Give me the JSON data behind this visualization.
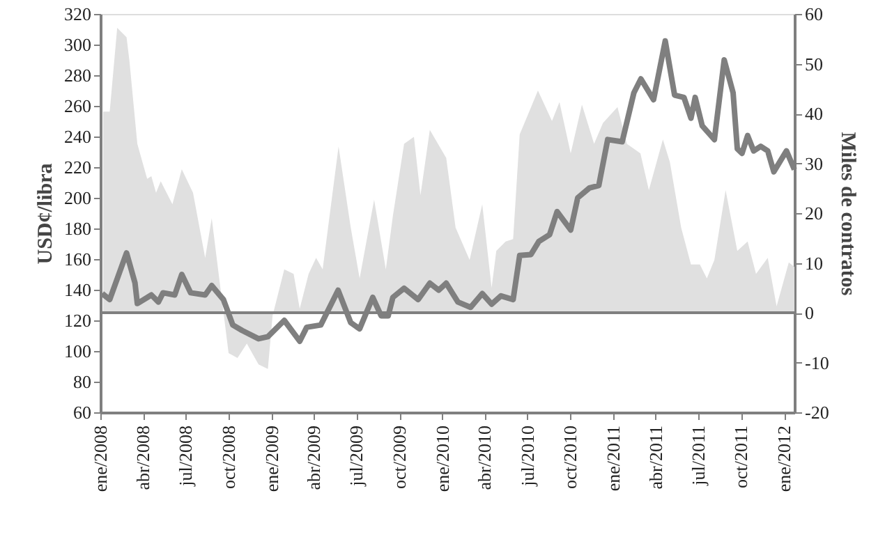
{
  "chart_data": {
    "type": "line",
    "ylabel": "USD¢/libra",
    "y2label": "Miles de contratos",
    "xlim": [
      "2008-01-01",
      "2012-01-23"
    ],
    "xticks": [
      {
        "value": "2008-01-01",
        "label": "ene/2008"
      },
      {
        "value": "2008-04-01",
        "label": "abr/2008"
      },
      {
        "value": "2008-07-01",
        "label": "jul/2008"
      },
      {
        "value": "2008-10-01",
        "label": "oct/2008"
      },
      {
        "value": "2009-01-01",
        "label": "ene/2009"
      },
      {
        "value": "2009-04-01",
        "label": "abr/2009"
      },
      {
        "value": "2009-07-01",
        "label": "jul/2009"
      },
      {
        "value": "2009-10-01",
        "label": "oct/2009"
      },
      {
        "value": "2010-01-01",
        "label": "ene/2010"
      },
      {
        "value": "2010-04-01",
        "label": "abr/2010"
      },
      {
        "value": "2010-07-01",
        "label": "jul/2010"
      },
      {
        "value": "2010-10-01",
        "label": "oct/2010"
      },
      {
        "value": "2011-01-01",
        "label": "ene/2011"
      },
      {
        "value": "2011-04-01",
        "label": "abr/2011"
      },
      {
        "value": "2011-07-01",
        "label": "jul/2011"
      },
      {
        "value": "2011-10-01",
        "label": "oct/2011"
      },
      {
        "value": "2012-01-01",
        "label": "ene/2012"
      }
    ],
    "ylim": [
      60,
      320
    ],
    "yticks": [
      60,
      80,
      100,
      120,
      140,
      160,
      180,
      200,
      220,
      240,
      260,
      280,
      300,
      320
    ],
    "y2lim": [
      -20,
      60
    ],
    "y2ticks": [
      -20,
      -10,
      0,
      10,
      20,
      30,
      40,
      50,
      60
    ],
    "grid": false,
    "marker": "none",
    "ref_lines": [
      {
        "axis": "y2",
        "value": 0,
        "color": "#7f7f7f"
      }
    ],
    "series": [
      {
        "type": "area",
        "axis": "y2",
        "color": "#e0e0e0",
        "x": [
          "2008-01-07",
          "2008-01-21",
          "2008-02-06",
          "2008-02-26",
          "2008-03-03",
          "2008-03-20",
          "2008-04-10",
          "2008-04-19",
          "2008-04-29",
          "2008-05-09",
          "2008-06-03",
          "2008-06-23",
          "2008-07-17",
          "2008-08-12",
          "2008-08-26",
          "2008-09-11",
          "2008-10-01",
          "2008-10-20",
          "2008-11-09",
          "2008-12-04",
          "2008-12-24",
          "2009-01-03",
          "2009-01-28",
          "2009-02-17",
          "2009-03-02",
          "2009-03-21",
          "2009-04-06",
          "2009-04-20",
          "2009-05-24",
          "2009-06-19",
          "2009-07-08",
          "2009-08-08",
          "2009-09-02",
          "2009-09-17",
          "2009-10-11",
          "2009-11-01",
          "2009-11-15",
          "2009-12-05",
          "2010-01-09",
          "2010-01-29",
          "2010-02-28",
          "2010-03-27",
          "2010-04-16",
          "2010-04-26",
          "2010-05-16",
          "2010-06-01",
          "2010-06-15",
          "2010-07-24",
          "2010-08-23",
          "2010-09-08",
          "2010-10-02",
          "2010-10-26",
          "2010-11-21",
          "2010-12-10",
          "2011-01-10",
          "2011-01-30",
          "2011-02-28",
          "2011-03-18",
          "2011-04-17",
          "2011-05-02",
          "2011-05-26",
          "2011-06-16",
          "2011-07-05",
          "2011-07-20",
          "2011-08-05",
          "2011-08-29",
          "2011-09-23",
          "2011-10-15",
          "2011-11-02",
          "2011-11-27",
          "2011-12-16",
          "2012-01-11",
          "2012-01-23"
        ],
        "values": [
          40.4,
          40.4,
          57.2,
          55.3,
          50.7,
          33.9,
          26.9,
          27.4,
          24.1,
          26.4,
          21.8,
          28.8,
          24.1,
          11,
          19,
          6.9,
          -8.1,
          -9.1,
          -6.2,
          -10.4,
          -11.3,
          -0.6,
          8.7,
          7.8,
          0.8,
          7.8,
          11,
          8.7,
          33.4,
          17.1,
          6.9,
          22.7,
          8.7,
          19.4,
          33.9,
          35.3,
          23.6,
          36.7,
          31.1,
          17.1,
          10.6,
          21.8,
          5,
          12.4,
          14.3,
          14.8,
          35.8,
          44.6,
          38.5,
          42.3,
          32,
          41.8,
          33.9,
          38.1,
          41.3,
          33.9,
          32,
          24.6,
          34.8,
          30.2,
          17.1,
          9.7,
          9.7,
          6.9,
          10.6,
          24.6,
          12.4,
          14.3,
          7.8,
          11,
          1.3,
          10.1,
          9.2
        ]
      },
      {
        "type": "line",
        "color": "#7f7f7f",
        "x": [
          "2008-01-05",
          "2008-01-21",
          "2008-02-26",
          "2008-03-15",
          "2008-03-20",
          "2008-04-19",
          "2008-05-04",
          "2008-05-14",
          "2008-06-08",
          "2008-06-23",
          "2008-07-12",
          "2008-08-12",
          "2008-08-26",
          "2008-09-20",
          "2008-10-10",
          "2008-10-30",
          "2008-12-04",
          "2008-12-24",
          "2009-01-28",
          "2009-03-02",
          "2009-03-17",
          "2009-04-16",
          "2009-05-23",
          "2009-06-19",
          "2009-07-08",
          "2009-08-05",
          "2009-08-23",
          "2009-09-07",
          "2009-09-17",
          "2009-10-11",
          "2009-11-10",
          "2009-12-05",
          "2009-12-24",
          "2010-01-09",
          "2010-02-03",
          "2010-03-02",
          "2010-03-27",
          "2010-04-16",
          "2010-05-06",
          "2010-06-01",
          "2010-06-15",
          "2010-07-09",
          "2010-07-26",
          "2010-08-18",
          "2010-09-03",
          "2010-10-02",
          "2010-10-17",
          "2010-11-11",
          "2010-12-01",
          "2010-12-20",
          "2011-01-20",
          "2011-02-14",
          "2011-03-01",
          "2011-03-28",
          "2011-04-22",
          "2011-05-12",
          "2011-06-01",
          "2011-06-16",
          "2011-06-25",
          "2011-07-10",
          "2011-08-05",
          "2011-08-26",
          "2011-09-14",
          "2011-09-23",
          "2011-10-03",
          "2011-10-15",
          "2011-10-28",
          "2011-11-12",
          "2011-11-27",
          "2011-12-10",
          "2012-01-06",
          "2012-01-23"
        ],
        "values": [
          137.5,
          133.6,
          164,
          144.5,
          131,
          136.6,
          132,
          138,
          136.6,
          150,
          138,
          136.6,
          142.7,
          133.6,
          117,
          113.4,
          108,
          109.4,
          120,
          106.4,
          115.5,
          117,
          139.7,
          118.5,
          114.5,
          135,
          123,
          123,
          135,
          141,
          133.6,
          144.3,
          139.7,
          144.3,
          132,
          128.5,
          137.5,
          130.6,
          136,
          133.6,
          162.4,
          163,
          171.5,
          176,
          191,
          179,
          200,
          206.4,
          208,
          238,
          236.6,
          268.5,
          277.6,
          264,
          302.4,
          267,
          265.5,
          252,
          265.5,
          247,
          238,
          290,
          268.5,
          232,
          229,
          240.6,
          230.6,
          233.6,
          230.6,
          217,
          230.6,
          218.5
        ]
      }
    ]
  }
}
